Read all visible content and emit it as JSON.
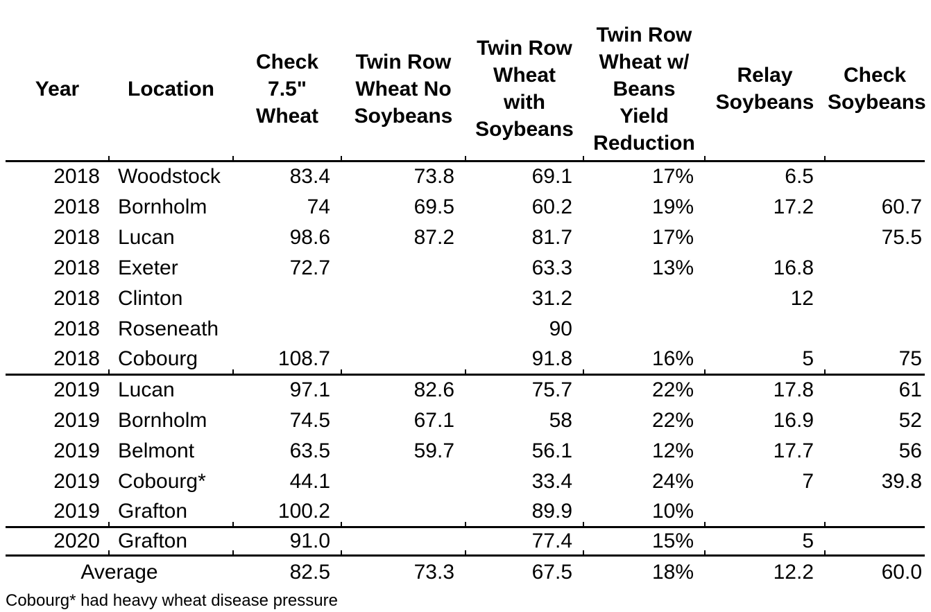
{
  "chart_data": {
    "type": "table",
    "columns": [
      "Year",
      "Location",
      "Check\n7.5\"\nWheat",
      "Twin Row\nWheat No\nSoybeans",
      "Twin Row\nWheat\nwith\nSoybeans",
      "Twin Row\nWheat w/\nBeans\nYield\nReduction",
      "Relay\nSoybeans",
      "Check\nSoybeans"
    ],
    "rows": [
      [
        "2018",
        "Woodstock",
        "83.4",
        "73.8",
        "69.1",
        "17%",
        "6.5",
        ""
      ],
      [
        "2018",
        "Bornholm",
        "74",
        "69.5",
        "60.2",
        "19%",
        "17.2",
        "60.7"
      ],
      [
        "2018",
        "Lucan",
        "98.6",
        "87.2",
        "81.7",
        "17%",
        "",
        "75.5"
      ],
      [
        "2018",
        "Exeter",
        "72.7",
        "",
        "63.3",
        "13%",
        "16.8",
        ""
      ],
      [
        "2018",
        "Clinton",
        "",
        "",
        "31.2",
        "",
        "12",
        ""
      ],
      [
        "2018",
        "Roseneath",
        "",
        "",
        "90",
        "",
        "",
        ""
      ],
      [
        "2018",
        "Cobourg",
        "108.7",
        "",
        "91.8",
        "16%",
        "5",
        "75"
      ],
      [
        "2019",
        "Lucan",
        "97.1",
        "82.6",
        "75.7",
        "22%",
        "17.8",
        "61"
      ],
      [
        "2019",
        "Bornholm",
        "74.5",
        "67.1",
        "58",
        "22%",
        "16.9",
        "52"
      ],
      [
        "2019",
        "Belmont",
        "63.5",
        "59.7",
        "56.1",
        "12%",
        "17.7",
        "56"
      ],
      [
        "2019",
        "Cobourg*",
        "44.1",
        "",
        "33.4",
        "24%",
        "7",
        "39.8"
      ],
      [
        "2019",
        "Grafton",
        "100.2",
        "",
        "89.9",
        "10%",
        "",
        ""
      ],
      [
        "2020",
        "Grafton",
        "91.0",
        "",
        "77.4",
        "15%",
        "5",
        ""
      ]
    ],
    "average_row": {
      "label": "Average",
      "values": [
        "82.5",
        "73.3",
        "67.5",
        "18%",
        "12.2",
        "60.0"
      ]
    },
    "footnote": "Cobourg* had heavy wheat disease pressure"
  }
}
